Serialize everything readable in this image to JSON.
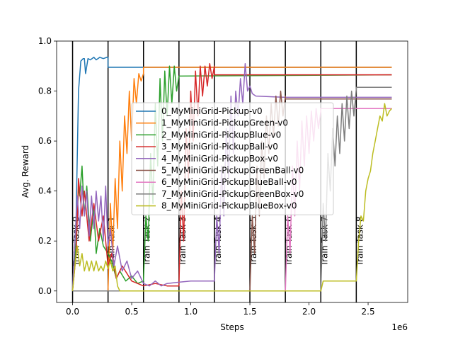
{
  "chart_data": {
    "type": "line",
    "title": "",
    "xlabel": "Steps",
    "ylabel": "Avg. Reward",
    "x_offset_text": "1e6",
    "xlim": [
      -0.135,
      2.835
    ],
    "ylim": [
      -0.046,
      1.0
    ],
    "x_ticks": [
      0.0,
      0.5,
      1.0,
      1.5,
      2.0,
      2.5
    ],
    "x_tick_labels": [
      "0.0",
      "0.5",
      "1.0",
      "1.5",
      "2.0",
      "2.5"
    ],
    "y_ticks": [
      0.0,
      0.2,
      0.4,
      0.6,
      0.8,
      1.0
    ],
    "y_tick_labels": [
      "0.0",
      "0.2",
      "0.4",
      "0.6",
      "0.8",
      "1.0"
    ],
    "task_boundaries": [
      0.0,
      0.3,
      0.6,
      0.9,
      1.2,
      1.5,
      1.8,
      2.1,
      2.4
    ],
    "task_labels": [
      "Train Task 0",
      "Train Task 1",
      "Train Task 2",
      "Train Task 3",
      "Train Task 4",
      "Train Task 5",
      "Train Task 6",
      "Train Task 7",
      "Train Task 8"
    ],
    "legend_position": "center",
    "series": [
      {
        "name": "0_MyMiniGrid-Pickup-v0",
        "color": "#1f77b4",
        "points": [
          [
            0.0,
            0.0
          ],
          [
            0.03,
            0.3
          ],
          [
            0.05,
            0.8
          ],
          [
            0.07,
            0.92
          ],
          [
            0.09,
            0.93
          ],
          [
            0.1,
            0.93
          ],
          [
            0.11,
            0.87
          ],
          [
            0.13,
            0.93
          ],
          [
            0.15,
            0.925
          ],
          [
            0.18,
            0.935
          ],
          [
            0.2,
            0.925
          ],
          [
            0.23,
            0.935
          ],
          [
            0.26,
            0.93
          ],
          [
            0.29,
            0.935
          ],
          [
            0.3,
            0.935
          ],
          [
            0.3,
            0.895
          ],
          [
            2.7,
            0.895
          ]
        ]
      },
      {
        "name": "1_MyMiniGrid-PickupGreen-v0",
        "color": "#ff7f0e",
        "points": [
          [
            0.0,
            0.0
          ],
          [
            0.3,
            0.0
          ],
          [
            0.32,
            0.35
          ],
          [
            0.34,
            0.15
          ],
          [
            0.36,
            0.45
          ],
          [
            0.38,
            0.25
          ],
          [
            0.4,
            0.6
          ],
          [
            0.42,
            0.4
          ],
          [
            0.44,
            0.7
          ],
          [
            0.46,
            0.55
          ],
          [
            0.48,
            0.8
          ],
          [
            0.5,
            0.6
          ],
          [
            0.52,
            0.85
          ],
          [
            0.54,
            0.75
          ],
          [
            0.56,
            0.87
          ],
          [
            0.58,
            0.84
          ],
          [
            0.6,
            0.87
          ],
          [
            0.6,
            0.895
          ],
          [
            2.7,
            0.895
          ]
        ]
      },
      {
        "name": "2_MyMiniGrid-PickupBlue-v0",
        "color": "#2ca02c",
        "points": [
          [
            0.0,
            0.0
          ],
          [
            0.03,
            0.2
          ],
          [
            0.05,
            0.42
          ],
          [
            0.06,
            0.38
          ],
          [
            0.08,
            0.5
          ],
          [
            0.1,
            0.3
          ],
          [
            0.12,
            0.42
          ],
          [
            0.15,
            0.2
          ],
          [
            0.18,
            0.33
          ],
          [
            0.2,
            0.15
          ],
          [
            0.23,
            0.25
          ],
          [
            0.26,
            0.18
          ],
          [
            0.3,
            0.15
          ],
          [
            0.33,
            0.12
          ],
          [
            0.37,
            0.05
          ],
          [
            0.4,
            0.08
          ],
          [
            0.45,
            0.04
          ],
          [
            0.5,
            0.06
          ],
          [
            0.55,
            0.03
          ],
          [
            0.6,
            0.04
          ],
          [
            0.62,
            0.3
          ],
          [
            0.64,
            0.2
          ],
          [
            0.66,
            0.55
          ],
          [
            0.68,
            0.35
          ],
          [
            0.7,
            0.75
          ],
          [
            0.72,
            0.5
          ],
          [
            0.74,
            0.85
          ],
          [
            0.76,
            0.6
          ],
          [
            0.78,
            0.88
          ],
          [
            0.8,
            0.7
          ],
          [
            0.82,
            0.9
          ],
          [
            0.84,
            0.75
          ],
          [
            0.86,
            0.9
          ],
          [
            0.88,
            0.8
          ],
          [
            0.9,
            0.86
          ],
          [
            2.7,
            0.865
          ]
        ]
      },
      {
        "name": "3_MyMiniGrid-PickupBall-v0",
        "color": "#d62728",
        "points": [
          [
            0.0,
            0.0
          ],
          [
            0.03,
            0.15
          ],
          [
            0.05,
            0.45
          ],
          [
            0.08,
            0.3
          ],
          [
            0.1,
            0.4
          ],
          [
            0.14,
            0.2
          ],
          [
            0.18,
            0.35
          ],
          [
            0.22,
            0.2
          ],
          [
            0.26,
            0.3
          ],
          [
            0.3,
            0.1
          ],
          [
            0.33,
            0.15
          ],
          [
            0.37,
            0.05
          ],
          [
            0.42,
            0.1
          ],
          [
            0.5,
            0.04
          ],
          [
            0.6,
            0.02
          ],
          [
            0.7,
            0.03
          ],
          [
            0.8,
            0.02
          ],
          [
            0.9,
            0.02
          ],
          [
            0.92,
            0.4
          ],
          [
            0.94,
            0.2
          ],
          [
            0.96,
            0.65
          ],
          [
            0.98,
            0.45
          ],
          [
            1.0,
            0.8
          ],
          [
            1.02,
            0.6
          ],
          [
            1.04,
            0.88
          ],
          [
            1.06,
            0.7
          ],
          [
            1.08,
            0.9
          ],
          [
            1.1,
            0.78
          ],
          [
            1.12,
            0.9
          ],
          [
            1.14,
            0.82
          ],
          [
            1.16,
            0.91
          ],
          [
            1.18,
            0.85
          ],
          [
            1.2,
            0.9
          ],
          [
            1.2,
            0.865
          ],
          [
            2.7,
            0.865
          ]
        ]
      },
      {
        "name": "4_MyMiniGrid-PickupBox-v0",
        "color": "#9467bd",
        "points": [
          [
            0.0,
            0.0
          ],
          [
            0.02,
            0.2
          ],
          [
            0.04,
            0.38
          ],
          [
            0.06,
            0.25
          ],
          [
            0.08,
            0.42
          ],
          [
            0.1,
            0.3
          ],
          [
            0.12,
            0.4
          ],
          [
            0.14,
            0.22
          ],
          [
            0.16,
            0.38
          ],
          [
            0.18,
            0.25
          ],
          [
            0.2,
            0.4
          ],
          [
            0.22,
            0.28
          ],
          [
            0.24,
            0.38
          ],
          [
            0.26,
            0.2
          ],
          [
            0.28,
            0.42
          ],
          [
            0.3,
            0.18
          ],
          [
            0.32,
            0.25
          ],
          [
            0.35,
            0.1
          ],
          [
            0.38,
            0.18
          ],
          [
            0.42,
            0.08
          ],
          [
            0.46,
            0.12
          ],
          [
            0.5,
            0.05
          ],
          [
            0.55,
            0.08
          ],
          [
            0.6,
            0.03
          ],
          [
            0.65,
            0.02
          ],
          [
            0.7,
            0.04
          ],
          [
            0.75,
            0.02
          ],
          [
            0.8,
            0.03
          ],
          [
            0.9,
            0.035
          ],
          [
            1.0,
            0.04
          ],
          [
            1.1,
            0.04
          ],
          [
            1.2,
            0.04
          ],
          [
            1.22,
            0.3
          ],
          [
            1.24,
            0.15
          ],
          [
            1.26,
            0.5
          ],
          [
            1.28,
            0.3
          ],
          [
            1.3,
            0.65
          ],
          [
            1.32,
            0.45
          ],
          [
            1.34,
            0.78
          ],
          [
            1.36,
            0.55
          ],
          [
            1.38,
            0.8
          ],
          [
            1.4,
            0.7
          ],
          [
            1.42,
            0.85
          ],
          [
            1.44,
            0.75
          ],
          [
            1.46,
            0.91
          ],
          [
            1.48,
            0.8
          ],
          [
            1.5,
            0.82
          ],
          [
            1.52,
            0.79
          ],
          [
            1.55,
            0.78
          ],
          [
            1.8,
            0.775
          ],
          [
            2.1,
            0.775
          ],
          [
            2.7,
            0.775
          ]
        ]
      },
      {
        "name": "5_MyMiniGrid-PickupGreenBall-v0",
        "color": "#8c564b",
        "points": [
          [
            0.0,
            0.0
          ],
          [
            0.3,
            0.0
          ],
          [
            0.6,
            0.0
          ],
          [
            0.9,
            0.0
          ],
          [
            1.2,
            0.0
          ],
          [
            1.5,
            0.0
          ],
          [
            1.52,
            0.3
          ],
          [
            1.54,
            0.15
          ],
          [
            1.56,
            0.5
          ],
          [
            1.58,
            0.3
          ],
          [
            1.6,
            0.6
          ],
          [
            1.62,
            0.45
          ],
          [
            1.64,
            0.7
          ],
          [
            1.66,
            0.55
          ],
          [
            1.68,
            0.75
          ],
          [
            1.7,
            0.62
          ],
          [
            1.72,
            0.78
          ],
          [
            1.74,
            0.66
          ],
          [
            1.76,
            0.8
          ],
          [
            1.78,
            0.7
          ],
          [
            1.8,
            0.78
          ],
          [
            1.8,
            0.768
          ],
          [
            2.7,
            0.768
          ]
        ]
      },
      {
        "name": "6_MyMiniGrid-PickupBlueBall-v0",
        "color": "#e377c2",
        "points": [
          [
            0.0,
            0.0
          ],
          [
            1.8,
            0.0
          ],
          [
            1.82,
            0.3
          ],
          [
            1.84,
            0.15
          ],
          [
            1.86,
            0.5
          ],
          [
            1.88,
            0.3
          ],
          [
            1.9,
            0.6
          ],
          [
            1.92,
            0.4
          ],
          [
            1.94,
            0.68
          ],
          [
            1.96,
            0.5
          ],
          [
            1.98,
            0.7
          ],
          [
            2.0,
            0.55
          ],
          [
            2.02,
            0.72
          ],
          [
            2.04,
            0.6
          ],
          [
            2.06,
            0.73
          ],
          [
            2.08,
            0.65
          ],
          [
            2.1,
            0.72
          ],
          [
            2.1,
            0.73
          ],
          [
            2.7,
            0.73
          ]
        ]
      },
      {
        "name": "7_MyMiniGrid-PickupGreenBox-v0",
        "color": "#7f7f7f",
        "points": [
          [
            0.0,
            0.0
          ],
          [
            2.1,
            0.0
          ],
          [
            2.12,
            0.35
          ],
          [
            2.14,
            0.2
          ],
          [
            2.16,
            0.55
          ],
          [
            2.18,
            0.4
          ],
          [
            2.2,
            0.65
          ],
          [
            2.22,
            0.5
          ],
          [
            2.24,
            0.7
          ],
          [
            2.26,
            0.55
          ],
          [
            2.28,
            0.75
          ],
          [
            2.3,
            0.6
          ],
          [
            2.32,
            0.78
          ],
          [
            2.34,
            0.65
          ],
          [
            2.36,
            0.8
          ],
          [
            2.38,
            0.7
          ],
          [
            2.4,
            0.81
          ],
          [
            2.4,
            0.815
          ],
          [
            2.7,
            0.815
          ]
        ]
      },
      {
        "name": "8_MyMiniGrid-PickupBlueBox-v0",
        "color": "#bcbd22",
        "points": [
          [
            0.0,
            0.0
          ],
          [
            0.02,
            0.1
          ],
          [
            0.04,
            0.18
          ],
          [
            0.06,
            0.1
          ],
          [
            0.08,
            0.15
          ],
          [
            0.1,
            0.08
          ],
          [
            0.12,
            0.12
          ],
          [
            0.14,
            0.08
          ],
          [
            0.16,
            0.12
          ],
          [
            0.18,
            0.08
          ],
          [
            0.2,
            0.12
          ],
          [
            0.22,
            0.08
          ],
          [
            0.24,
            0.1
          ],
          [
            0.26,
            0.08
          ],
          [
            0.28,
            0.12
          ],
          [
            0.3,
            0.09
          ],
          [
            0.32,
            0.12
          ],
          [
            0.34,
            0.08
          ],
          [
            0.36,
            0.1
          ],
          [
            0.38,
            0.02
          ],
          [
            0.4,
            0.0
          ],
          [
            1.2,
            0.0
          ],
          [
            1.8,
            0.0
          ],
          [
            2.1,
            0.0
          ],
          [
            2.12,
            0.04
          ],
          [
            2.4,
            0.04
          ],
          [
            2.42,
            0.2
          ],
          [
            2.44,
            0.3
          ],
          [
            2.46,
            0.28
          ],
          [
            2.48,
            0.4
          ],
          [
            2.5,
            0.45
          ],
          [
            2.52,
            0.48
          ],
          [
            2.54,
            0.55
          ],
          [
            2.56,
            0.6
          ],
          [
            2.58,
            0.65
          ],
          [
            2.6,
            0.7
          ],
          [
            2.62,
            0.68
          ],
          [
            2.64,
            0.75
          ],
          [
            2.66,
            0.7
          ],
          [
            2.68,
            0.72
          ],
          [
            2.7,
            0.73
          ]
        ]
      }
    ]
  }
}
